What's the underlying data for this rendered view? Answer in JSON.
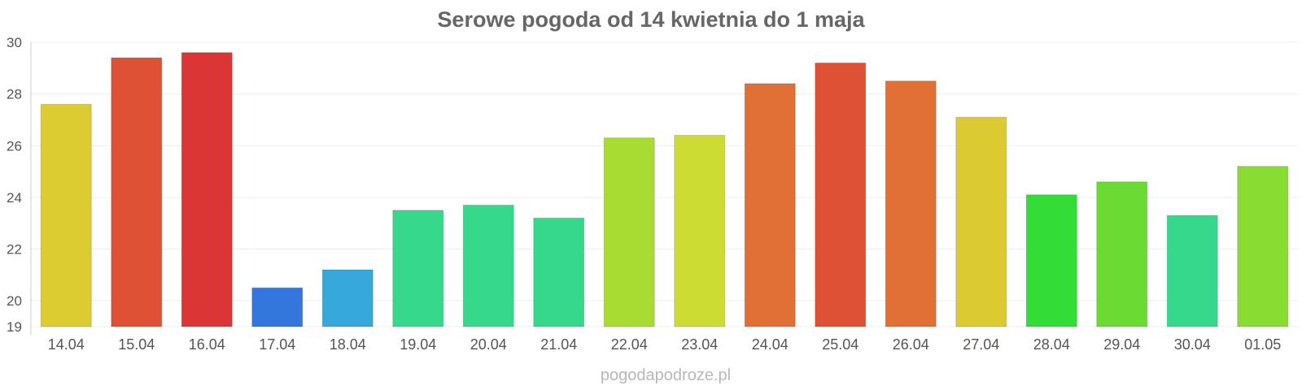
{
  "chart_data": {
    "type": "bar",
    "title": "Serowe pogoda od 14 kwietnia do 1 maja",
    "xlabel": "",
    "ylabel": "",
    "ylim": [
      19,
      30
    ],
    "yticks": [
      19,
      20,
      22,
      24,
      26,
      28,
      30
    ],
    "grid": true,
    "legend": "none",
    "categories": [
      "14.04",
      "15.04",
      "16.04",
      "17.04",
      "18.04",
      "19.04",
      "20.04",
      "21.04",
      "22.04",
      "23.04",
      "24.04",
      "25.04",
      "26.04",
      "27.04",
      "28.04",
      "29.04",
      "30.04",
      "01.05"
    ],
    "values": [
      27.6,
      29.4,
      29.6,
      20.5,
      21.2,
      23.5,
      23.7,
      23.2,
      26.3,
      26.4,
      28.4,
      29.2,
      28.5,
      27.1,
      24.1,
      24.6,
      23.3,
      25.2
    ],
    "colors": [
      "#dccb31",
      "#df5134",
      "#dc3535",
      "#3377dd",
      "#36a8dc",
      "#36d98b",
      "#36d98b",
      "#36d98b",
      "#a8dc30",
      "#cddc33",
      "#e07035",
      "#df5134",
      "#e07035",
      "#dcca33",
      "#33dc36",
      "#6bdb33",
      "#36d98b",
      "#89dc32"
    ]
  },
  "watermark": "pogodapodroze.pl"
}
